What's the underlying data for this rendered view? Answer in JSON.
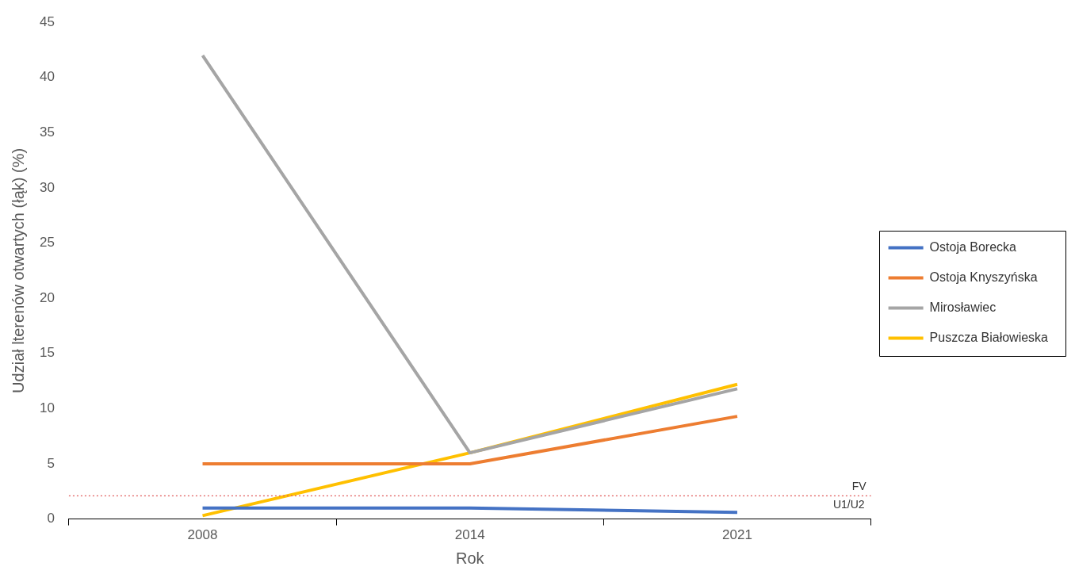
{
  "chart_data": {
    "type": "line",
    "xlabel": "Rok",
    "ylabel": "Udział lterenów otwartych (łąk) (%)",
    "categories": [
      "2008",
      "2014",
      "2021"
    ],
    "series": [
      {
        "name": "Ostoja Borecka",
        "color": "#4472c4",
        "values": [
          1.0,
          1.0,
          0.6
        ]
      },
      {
        "name": "Ostoja Knyszyńska",
        "color": "#ed7d31",
        "values": [
          5.0,
          5.0,
          9.3
        ]
      },
      {
        "name": "Mirosławiec",
        "color": "#a5a5a5",
        "values": [
          42.0,
          6.0,
          11.8
        ]
      },
      {
        "name": "Puszcza Białowieska",
        "color": "#ffc000",
        "values": [
          0.3,
          6.0,
          12.2
        ]
      }
    ],
    "ylim": [
      0,
      45
    ],
    "yticks": [
      0,
      5,
      10,
      15,
      20,
      25,
      30,
      35,
      40,
      45
    ],
    "ref_lines": [
      {
        "axis": "y",
        "value": 2.1,
        "label": "FV",
        "color": "#e05a5a",
        "line_style": "dotted"
      }
    ],
    "annotations": [
      "U1/U2"
    ],
    "grid": false,
    "legend": "right",
    "marker": "none",
    "line_style": "solid"
  }
}
